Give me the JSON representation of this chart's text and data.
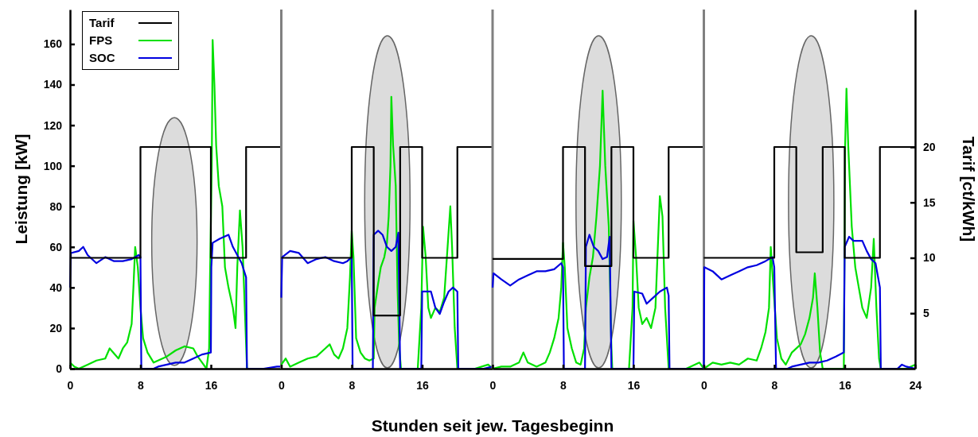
{
  "chart_data": [
    {
      "type": "line",
      "ylabel": "Leistung [kW]",
      "xlabel": "Stunden seit jew. Tagesbeginn",
      "xlim": [
        0,
        24
      ],
      "xticks": [
        0,
        8,
        16
      ],
      "ylim": [
        0,
        177
      ],
      "yticks": [
        0,
        20,
        40,
        60,
        80,
        100,
        120,
        140,
        160
      ],
      "y2lim": [
        0,
        32.4
      ],
      "legend": "top left",
      "series": [
        {
          "name": "Tarif",
          "type": "step",
          "axis": "y2",
          "color": "#000000",
          "x": [
            0,
            8,
            16,
            20,
            24
          ],
          "values": [
            10,
            20,
            10,
            20,
            20
          ]
        },
        {
          "name": "FPS",
          "color": "#00e000",
          "x": [
            0,
            0.5,
            1,
            2,
            3,
            4,
            4.5,
            5.5,
            6,
            6.5,
            7,
            7.2,
            7.4,
            7.7,
            8,
            8.3,
            8.8,
            9.5,
            10,
            11,
            12,
            13,
            14,
            14.5,
            15.5,
            15.8,
            15.9,
            16.1,
            16.2,
            16.4,
            16.6,
            16.9,
            17.3,
            17.6,
            18,
            18.5,
            18.8,
            19,
            19.3,
            19.6,
            20.1,
            22
          ],
          "values": [
            3,
            1,
            0,
            2,
            4,
            5,
            10,
            5,
            10,
            13,
            22,
            40,
            60,
            50,
            30,
            15,
            8,
            3,
            4,
            6,
            9,
            11,
            10,
            6,
            0,
            10,
            45,
            100,
            162,
            140,
            110,
            90,
            80,
            50,
            40,
            30,
            20,
            50,
            78,
            60,
            0,
            0
          ]
        },
        {
          "name": "SOC",
          "color": "#0000e0",
          "x": [
            0,
            0.1,
            1,
            1.5,
            2,
            3,
            4,
            5,
            6,
            7,
            7.8,
            8,
            8.1,
            9.5,
            10,
            11,
            12,
            13,
            14,
            15,
            16,
            16.05,
            16.2,
            17,
            18,
            18.5,
            19,
            19.5,
            20,
            20.1,
            22,
            23.5,
            24
          ],
          "values": [
            40,
            57,
            58,
            60,
            56,
            52,
            55,
            53,
            53,
            54,
            56,
            55,
            0,
            0,
            1,
            2,
            3,
            3,
            5,
            7,
            8,
            50,
            62,
            64,
            66,
            60,
            56,
            52,
            45,
            0,
            0,
            1,
            1
          ]
        }
      ]
    },
    {
      "type": "line",
      "tick_labels": "x",
      "xlim": [
        0,
        24
      ],
      "xticks": [
        0,
        8,
        16
      ],
      "ylim": [
        0,
        177
      ],
      "y2lim": [
        0,
        32.4
      ],
      "series": [
        {
          "type": "step",
          "axis": "y2",
          "color": "#000000",
          "x": [
            0,
            8,
            10.5,
            13.5,
            16,
            20,
            24
          ],
          "values": [
            10,
            20,
            4.8,
            20,
            10,
            20,
            20
          ]
        },
        {
          "color": "#00e000",
          "x": [
            0,
            0.5,
            1,
            2,
            3,
            4,
            5,
            5.5,
            6,
            6.5,
            7,
            7.5,
            7.8,
            8,
            8.2,
            8.5,
            9,
            9.5,
            10,
            10.5,
            10.6,
            11,
            11.3,
            11.7,
            12,
            12.2,
            12.4,
            12.5,
            12.7,
            13,
            13.2,
            13.4,
            13.6,
            15.5,
            15.9,
            16.1,
            16.4,
            16.7,
            17,
            17.5,
            18,
            18.5,
            19.2,
            19.4,
            19.7,
            20,
            22,
            23.5,
            24
          ],
          "values": [
            2,
            5,
            1,
            3,
            5,
            6,
            10,
            12,
            7,
            5,
            10,
            20,
            45,
            68,
            55,
            15,
            8,
            5,
            4,
            5,
            30,
            42,
            50,
            55,
            62,
            75,
            100,
            134,
            110,
            90,
            40,
            10,
            0,
            0,
            30,
            70,
            55,
            30,
            25,
            30,
            28,
            35,
            80,
            60,
            20,
            0,
            0,
            2,
            0
          ]
        },
        {
          "color": "#0000e0",
          "x": [
            0,
            0.1,
            1,
            2,
            3,
            4,
            5,
            6,
            7,
            7.5,
            8,
            8.1,
            10.4,
            10.5,
            11,
            11.5,
            12,
            12.5,
            13,
            13.3,
            13.5,
            15.9,
            16,
            17,
            17.5,
            18,
            18.5,
            19,
            19.5,
            20,
            20.1,
            23,
            24
          ],
          "values": [
            35,
            55,
            58,
            57,
            52,
            54,
            55,
            53,
            52,
            53,
            55,
            0,
            0,
            66,
            68,
            66,
            60,
            58,
            60,
            67,
            0,
            0,
            38,
            38,
            30,
            27,
            33,
            38,
            40,
            38,
            0,
            0,
            1
          ]
        }
      ]
    },
    {
      "type": "line",
      "tick_labels": "x",
      "xlim": [
        0,
        24
      ],
      "xticks": [
        0,
        8,
        16
      ],
      "ylim": [
        0,
        177
      ],
      "y2lim": [
        0,
        32.4
      ],
      "series": [
        {
          "type": "step",
          "axis": "y2",
          "color": "#000000",
          "x": [
            0,
            8,
            10.5,
            13.5,
            16,
            20,
            24
          ],
          "values": [
            9.9,
            20,
            9.25,
            20,
            10,
            20,
            20
          ]
        },
        {
          "color": "#00e000",
          "x": [
            0,
            1,
            2,
            3,
            3.5,
            4,
            5,
            6,
            6.5,
            7,
            7.5,
            7.8,
            8,
            8.2,
            8.5,
            9,
            9.5,
            10,
            10.4,
            10.6,
            11,
            11.4,
            11.8,
            12.2,
            12.5,
            12.8,
            13.2,
            13.5,
            13.6,
            15.5,
            15.9,
            16,
            16.3,
            16.6,
            17,
            17.5,
            18,
            18.5,
            19,
            19.3,
            19.6,
            20,
            22,
            23.5,
            24
          ],
          "values": [
            0,
            1,
            1,
            3,
            8,
            3,
            1,
            3,
            8,
            15,
            25,
            40,
            62,
            50,
            20,
            10,
            3,
            2,
            10,
            30,
            45,
            55,
            75,
            100,
            137,
            100,
            70,
            10,
            0,
            0,
            30,
            73,
            55,
            30,
            22,
            25,
            20,
            30,
            85,
            75,
            30,
            0,
            0,
            3,
            0
          ]
        },
        {
          "color": "#0000e0",
          "x": [
            0,
            0.1,
            1,
            2,
            3,
            4,
            5,
            6,
            7,
            7.8,
            8,
            8.1,
            10.5,
            10.6,
            11,
            11.5,
            12,
            12.5,
            13,
            13.3,
            13.5,
            16,
            16.1,
            17,
            17.5,
            18,
            19,
            19.8,
            20,
            20.1,
            23,
            24
          ],
          "values": [
            40,
            47,
            44,
            41,
            44,
            46,
            48,
            48,
            49,
            52,
            50,
            0,
            0,
            60,
            66,
            60,
            58,
            54,
            55,
            65,
            0,
            0,
            38,
            37,
            32,
            34,
            38,
            40,
            36,
            0,
            0,
            0
          ]
        }
      ]
    },
    {
      "type": "line",
      "y2label": "Tarif [ct/kWh]",
      "xlim": [
        0,
        24
      ],
      "xticks": [
        0,
        8,
        16,
        24
      ],
      "ylim": [
        0,
        177
      ],
      "y2lim": [
        0,
        32.4
      ],
      "y2ticks": [
        5,
        10,
        15,
        20
      ],
      "series": [
        {
          "type": "step",
          "axis": "y2",
          "color": "#000000",
          "x": [
            0,
            8,
            10.5,
            13.5,
            16,
            20,
            24
          ],
          "values": [
            10,
            20,
            10.5,
            20,
            10,
            20,
            20
          ]
        },
        {
          "color": "#00e000",
          "x": [
            0,
            1,
            2,
            3,
            4,
            5,
            6,
            6.5,
            7,
            7.4,
            7.6,
            7.9,
            8.3,
            8.8,
            9.3,
            10,
            11,
            11.5,
            12,
            12.4,
            12.6,
            12.9,
            13.2,
            13.5,
            15.9,
            16.05,
            16.2,
            16.4,
            16.6,
            16.8,
            17.2,
            17.6,
            18,
            18.5,
            19,
            19.3,
            19.6,
            19.9,
            20.1,
            23,
            24
          ],
          "values": [
            0,
            3,
            2,
            3,
            2,
            5,
            4,
            10,
            18,
            30,
            60,
            40,
            15,
            5,
            2,
            8,
            12,
            17,
            25,
            35,
            47,
            30,
            8,
            0,
            0,
            110,
            138,
            110,
            90,
            70,
            50,
            40,
            30,
            25,
            40,
            64,
            30,
            5,
            0,
            0,
            2
          ]
        },
        {
          "color": "#0000e0",
          "x": [
            0,
            0.05,
            1,
            2,
            3,
            4,
            5,
            6,
            7,
            7.8,
            8,
            8.2,
            9.5,
            10,
            11,
            12,
            13,
            14,
            15,
            15.9,
            16,
            16.5,
            17,
            18,
            18.5,
            19,
            19.5,
            20,
            20.1,
            22,
            22.5,
            23,
            24
          ],
          "values": [
            0,
            50,
            48,
            44,
            46,
            48,
            50,
            51,
            53,
            55,
            50,
            0,
            0,
            1,
            2,
            3,
            3,
            4,
            6,
            8,
            60,
            65,
            63,
            63,
            58,
            54,
            52,
            40,
            0,
            0,
            2,
            1,
            0
          ]
        }
      ]
    }
  ]
}
